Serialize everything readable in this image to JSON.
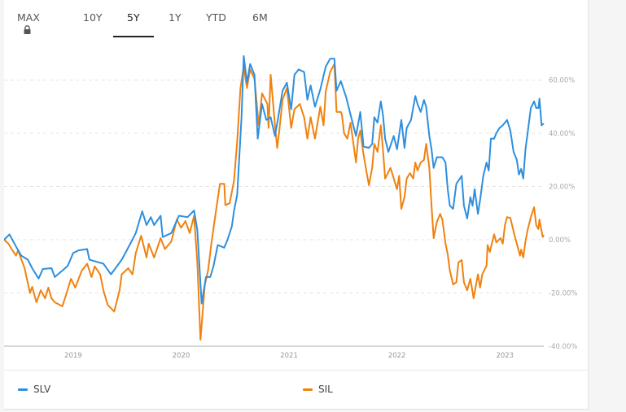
{
  "tabs": [
    {
      "label": "MAX",
      "locked": true,
      "icon": "lock-icon"
    },
    {
      "label": "10Y"
    },
    {
      "label": "5Y",
      "active": true
    },
    {
      "label": "1Y"
    },
    {
      "label": "YTD"
    },
    {
      "label": "6M"
    }
  ],
  "legend": [
    {
      "label": "SLV",
      "color": "#2e8fde"
    },
    {
      "label": "SIL",
      "color": "#f0820f"
    }
  ],
  "chart_data": {
    "type": "line",
    "title": "",
    "xlabel": "",
    "ylabel": "",
    "xlim": [
      2018.36,
      2023.36
    ],
    "ylim": [
      -40,
      70
    ],
    "x_ticks": [
      {
        "value": 2019,
        "label": "2019"
      },
      {
        "value": 2020,
        "label": "2020"
      },
      {
        "value": 2021,
        "label": "2021"
      },
      {
        "value": 2022,
        "label": "2022"
      },
      {
        "value": 2023,
        "label": "2023"
      }
    ],
    "y_ticks": [
      {
        "value": 60,
        "label": "60.00%"
      },
      {
        "value": 40,
        "label": "40.00%"
      },
      {
        "value": 20,
        "label": "20.00%"
      },
      {
        "value": 0,
        "label": "0.00%"
      },
      {
        "value": -20,
        "label": "-20.00%"
      },
      {
        "value": -40,
        "label": "-40.00%"
      }
    ],
    "grid": "horizontal dashed",
    "legend_position": "bottom",
    "series": [
      {
        "name": "SLV",
        "color": "#2e8fde",
        "points": [
          [
            2018.36,
            0
          ],
          [
            2018.41,
            2
          ],
          [
            2018.47,
            -2.5
          ],
          [
            2018.52,
            -6
          ],
          [
            2018.58,
            -7.5
          ],
          [
            2018.62,
            -10.7
          ],
          [
            2018.68,
            -14.6
          ],
          [
            2018.72,
            -11
          ],
          [
            2018.8,
            -10.7
          ],
          [
            2018.83,
            -14
          ],
          [
            2018.9,
            -11.6
          ],
          [
            2018.95,
            -9.8
          ],
          [
            2019.0,
            -5
          ],
          [
            2019.05,
            -4
          ],
          [
            2019.13,
            -3.5
          ],
          [
            2019.15,
            -7.5
          ],
          [
            2019.28,
            -9
          ],
          [
            2019.35,
            -13
          ],
          [
            2019.45,
            -7.5
          ],
          [
            2019.53,
            -1.5
          ],
          [
            2019.58,
            2.5
          ],
          [
            2019.64,
            10.7
          ],
          [
            2019.68,
            5.5
          ],
          [
            2019.72,
            8.5
          ],
          [
            2019.75,
            5.5
          ],
          [
            2019.81,
            9
          ],
          [
            2019.83,
            1
          ],
          [
            2019.91,
            2.5
          ],
          [
            2019.98,
            9
          ],
          [
            2020.06,
            8.5
          ],
          [
            2020.12,
            11
          ],
          [
            2020.15,
            3.6
          ],
          [
            2020.19,
            -24
          ],
          [
            2020.23,
            -14
          ],
          [
            2020.27,
            -14
          ],
          [
            2020.3,
            -10
          ],
          [
            2020.34,
            -2
          ],
          [
            2020.4,
            -3
          ],
          [
            2020.43,
            0
          ],
          [
            2020.47,
            5
          ],
          [
            2020.49,
            10.7
          ],
          [
            2020.52,
            17
          ],
          [
            2020.56,
            46
          ],
          [
            2020.58,
            69
          ],
          [
            2020.61,
            59
          ],
          [
            2020.64,
            66
          ],
          [
            2020.68,
            62
          ],
          [
            2020.71,
            38
          ],
          [
            2020.75,
            51
          ],
          [
            2020.79,
            45
          ],
          [
            2020.83,
            46
          ],
          [
            2020.87,
            39
          ],
          [
            2020.9,
            46
          ],
          [
            2020.94,
            56
          ],
          [
            2020.98,
            59
          ],
          [
            2021.02,
            49
          ],
          [
            2021.05,
            62
          ],
          [
            2021.09,
            64
          ],
          [
            2021.14,
            63
          ],
          [
            2021.17,
            52.6
          ],
          [
            2021.2,
            58
          ],
          [
            2021.24,
            50
          ],
          [
            2021.29,
            56.5
          ],
          [
            2021.34,
            65
          ],
          [
            2021.38,
            68
          ],
          [
            2021.42,
            68
          ],
          [
            2021.44,
            56
          ],
          [
            2021.48,
            59.6
          ],
          [
            2021.53,
            53.5
          ],
          [
            2021.57,
            47
          ],
          [
            2021.62,
            39
          ],
          [
            2021.66,
            48
          ],
          [
            2021.69,
            35
          ],
          [
            2021.74,
            34.5
          ],
          [
            2021.77,
            36
          ],
          [
            2021.79,
            46
          ],
          [
            2021.82,
            44
          ],
          [
            2021.85,
            52
          ],
          [
            2021.87,
            47
          ],
          [
            2021.89,
            38
          ],
          [
            2021.92,
            33
          ],
          [
            2021.97,
            39
          ],
          [
            2022.0,
            34
          ],
          [
            2022.04,
            45
          ],
          [
            2022.07,
            34.5
          ],
          [
            2022.09,
            42
          ],
          [
            2022.13,
            45
          ],
          [
            2022.17,
            54
          ],
          [
            2022.19,
            51
          ],
          [
            2022.22,
            48
          ],
          [
            2022.25,
            52.5
          ],
          [
            2022.27,
            50
          ],
          [
            2022.3,
            39
          ],
          [
            2022.32,
            34
          ],
          [
            2022.34,
            27
          ],
          [
            2022.37,
            31
          ],
          [
            2022.42,
            31
          ],
          [
            2022.45,
            29
          ],
          [
            2022.47,
            19
          ],
          [
            2022.49,
            12.8
          ],
          [
            2022.52,
            11.6
          ],
          [
            2022.55,
            21
          ],
          [
            2022.6,
            24
          ],
          [
            2022.62,
            12.8
          ],
          [
            2022.65,
            8
          ],
          [
            2022.68,
            16
          ],
          [
            2022.7,
            12.8
          ],
          [
            2022.72,
            19
          ],
          [
            2022.75,
            9.7
          ],
          [
            2022.77,
            15
          ],
          [
            2022.8,
            24
          ],
          [
            2022.83,
            29
          ],
          [
            2022.85,
            26
          ],
          [
            2022.87,
            38
          ],
          [
            2022.9,
            38
          ],
          [
            2022.92,
            40
          ],
          [
            2022.95,
            42
          ],
          [
            2022.98,
            43
          ],
          [
            2023.02,
            45
          ],
          [
            2023.05,
            41
          ],
          [
            2023.08,
            33
          ],
          [
            2023.11,
            30
          ],
          [
            2023.13,
            24.5
          ],
          [
            2023.15,
            26.6
          ],
          [
            2023.17,
            23
          ],
          [
            2023.19,
            34
          ],
          [
            2023.21,
            40
          ],
          [
            2023.24,
            49.5
          ],
          [
            2023.27,
            52
          ],
          [
            2023.29,
            49.5
          ],
          [
            2023.31,
            49.5
          ],
          [
            2023.32,
            53
          ],
          [
            2023.34,
            43
          ],
          [
            2023.36,
            43.7
          ]
        ]
      },
      {
        "name": "SIL",
        "color": "#f0820f",
        "points": [
          [
            2018.36,
            0
          ],
          [
            2018.4,
            -1.5
          ],
          [
            2018.43,
            -3.5
          ],
          [
            2018.47,
            -6
          ],
          [
            2018.49,
            -4
          ],
          [
            2018.55,
            -10.7
          ],
          [
            2018.6,
            -20
          ],
          [
            2018.62,
            -17.7
          ],
          [
            2018.66,
            -23.5
          ],
          [
            2018.7,
            -19
          ],
          [
            2018.74,
            -22
          ],
          [
            2018.77,
            -18
          ],
          [
            2018.8,
            -22
          ],
          [
            2018.83,
            -23.5
          ],
          [
            2018.9,
            -25
          ],
          [
            2018.94,
            -20
          ],
          [
            2018.98,
            -14.7
          ],
          [
            2019.02,
            -18
          ],
          [
            2019.08,
            -11.6
          ],
          [
            2019.13,
            -9
          ],
          [
            2019.17,
            -14
          ],
          [
            2019.2,
            -10
          ],
          [
            2019.25,
            -13
          ],
          [
            2019.28,
            -19
          ],
          [
            2019.32,
            -24.5
          ],
          [
            2019.38,
            -27
          ],
          [
            2019.43,
            -19
          ],
          [
            2019.45,
            -13
          ],
          [
            2019.51,
            -10.7
          ],
          [
            2019.55,
            -13
          ],
          [
            2019.58,
            -5
          ],
          [
            2019.63,
            1.5
          ],
          [
            2019.68,
            -6.7
          ],
          [
            2019.7,
            -1.5
          ],
          [
            2019.75,
            -6.7
          ],
          [
            2019.81,
            0.6
          ],
          [
            2019.85,
            -3.5
          ],
          [
            2019.91,
            -0.6
          ],
          [
            2019.96,
            7.6
          ],
          [
            2020.0,
            4.5
          ],
          [
            2020.04,
            7
          ],
          [
            2020.08,
            2.5
          ],
          [
            2020.12,
            9
          ],
          [
            2020.15,
            -8.5
          ],
          [
            2020.18,
            -37.6
          ],
          [
            2020.22,
            -17
          ],
          [
            2020.25,
            -11.6
          ],
          [
            2020.28,
            -1.5
          ],
          [
            2020.32,
            10
          ],
          [
            2020.36,
            21
          ],
          [
            2020.4,
            21
          ],
          [
            2020.41,
            13
          ],
          [
            2020.45,
            13.7
          ],
          [
            2020.49,
            22
          ],
          [
            2020.52,
            37
          ],
          [
            2020.55,
            57
          ],
          [
            2020.58,
            65
          ],
          [
            2020.61,
            57
          ],
          [
            2020.64,
            64
          ],
          [
            2020.68,
            60.5
          ],
          [
            2020.72,
            43
          ],
          [
            2020.75,
            55
          ],
          [
            2020.8,
            51
          ],
          [
            2020.81,
            42
          ],
          [
            2020.83,
            62
          ],
          [
            2020.87,
            43
          ],
          [
            2020.89,
            34.5
          ],
          [
            2020.91,
            41
          ],
          [
            2020.94,
            52.6
          ],
          [
            2020.98,
            57
          ],
          [
            2021.02,
            42
          ],
          [
            2021.05,
            49
          ],
          [
            2021.1,
            51
          ],
          [
            2021.14,
            46
          ],
          [
            2021.17,
            38
          ],
          [
            2021.2,
            46
          ],
          [
            2021.24,
            38
          ],
          [
            2021.29,
            50
          ],
          [
            2021.32,
            43
          ],
          [
            2021.34,
            55.6
          ],
          [
            2021.38,
            63
          ],
          [
            2021.42,
            66
          ],
          [
            2021.44,
            48
          ],
          [
            2021.48,
            48
          ],
          [
            2021.49,
            47
          ],
          [
            2021.51,
            40
          ],
          [
            2021.54,
            38
          ],
          [
            2021.57,
            44
          ],
          [
            2021.59,
            38
          ],
          [
            2021.62,
            29
          ],
          [
            2021.64,
            38
          ],
          [
            2021.66,
            41
          ],
          [
            2021.69,
            32
          ],
          [
            2021.72,
            25
          ],
          [
            2021.74,
            20.5
          ],
          [
            2021.77,
            27
          ],
          [
            2021.79,
            36
          ],
          [
            2021.82,
            33
          ],
          [
            2021.85,
            43
          ],
          [
            2021.87,
            34
          ],
          [
            2021.89,
            23
          ],
          [
            2021.94,
            27
          ],
          [
            2022.0,
            19
          ],
          [
            2022.02,
            24
          ],
          [
            2022.04,
            11.6
          ],
          [
            2022.07,
            16
          ],
          [
            2022.09,
            23
          ],
          [
            2022.12,
            25
          ],
          [
            2022.15,
            23
          ],
          [
            2022.17,
            29
          ],
          [
            2022.19,
            26
          ],
          [
            2022.22,
            29
          ],
          [
            2022.25,
            30
          ],
          [
            2022.27,
            36
          ],
          [
            2022.3,
            27
          ],
          [
            2022.32,
            12.8
          ],
          [
            2022.34,
            0.6
          ],
          [
            2022.37,
            6.7
          ],
          [
            2022.4,
            9.7
          ],
          [
            2022.42,
            7.6
          ],
          [
            2022.45,
            -1.5
          ],
          [
            2022.47,
            -5.5
          ],
          [
            2022.49,
            -11.6
          ],
          [
            2022.52,
            -16.8
          ],
          [
            2022.55,
            -16
          ],
          [
            2022.57,
            -8.5
          ],
          [
            2022.6,
            -7.6
          ],
          [
            2022.62,
            -16
          ],
          [
            2022.65,
            -19
          ],
          [
            2022.68,
            -14.7
          ],
          [
            2022.71,
            -22
          ],
          [
            2022.75,
            -13
          ],
          [
            2022.77,
            -18
          ],
          [
            2022.79,
            -13
          ],
          [
            2022.83,
            -9.8
          ],
          [
            2022.84,
            -2
          ],
          [
            2022.86,
            -4.6
          ],
          [
            2022.9,
            2
          ],
          [
            2022.92,
            -1
          ],
          [
            2022.96,
            0.6
          ],
          [
            2022.98,
            -1.5
          ],
          [
            2023.0,
            5.5
          ],
          [
            2023.02,
            8.5
          ],
          [
            2023.05,
            8.2
          ],
          [
            2023.09,
            1.5
          ],
          [
            2023.11,
            -1.5
          ],
          [
            2023.14,
            -6
          ],
          [
            2023.15,
            -3.7
          ],
          [
            2023.17,
            -6.7
          ],
          [
            2023.19,
            -0.6
          ],
          [
            2023.21,
            3.6
          ],
          [
            2023.24,
            8.5
          ],
          [
            2023.27,
            12.2
          ],
          [
            2023.29,
            5.5
          ],
          [
            2023.31,
            4
          ],
          [
            2023.32,
            7.6
          ],
          [
            2023.35,
            1
          ],
          [
            2023.36,
            1.8
          ]
        ]
      }
    ]
  }
}
